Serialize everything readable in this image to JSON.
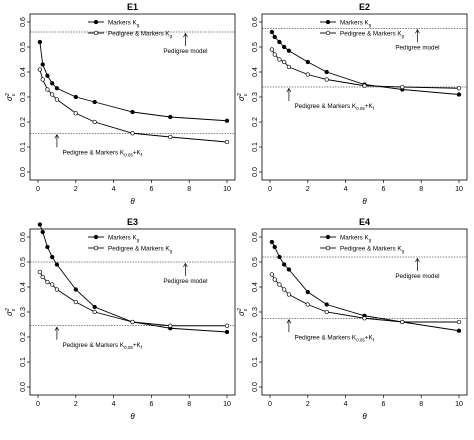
{
  "chart_data": [
    {
      "type": "line",
      "title": "E1",
      "xlabel": "θ",
      "ylabel": "σ²ε",
      "xlim": [
        0,
        10
      ],
      "ylim": [
        0.0,
        0.6
      ],
      "xticks": [
        "0",
        "2",
        "4",
        "6",
        "8",
        "10"
      ],
      "yticks": [
        "0.0",
        "0.1",
        "0.2",
        "0.3",
        "0.4",
        "0.5",
        "0.6"
      ],
      "series": [
        {
          "name": "Markers Kg",
          "marker": "filled",
          "x": [
            0.1,
            0.25,
            0.5,
            0.75,
            1,
            2,
            3,
            5,
            7,
            10
          ],
          "values": [
            0.52,
            0.43,
            0.385,
            0.355,
            0.335,
            0.3,
            0.28,
            0.24,
            0.22,
            0.205
          ]
        },
        {
          "name": "Pedigree & Markers Kg",
          "marker": "open",
          "x": [
            0.1,
            0.25,
            0.5,
            0.75,
            1,
            2,
            3,
            5,
            7,
            10
          ],
          "values": [
            0.41,
            0.37,
            0.33,
            0.31,
            0.29,
            0.235,
            0.2,
            0.155,
            0.14,
            0.12
          ]
        }
      ],
      "legend": {
        "position": "top-right",
        "entries": [
          "Markers Kg",
          "Pedigree & Markers Kg"
        ]
      },
      "reference_lines": [
        {
          "value": 0.56,
          "label": "Pedigree model",
          "label_position": "upper-right"
        },
        {
          "value": 0.155,
          "label": "Pedigree & Markers K0.05+Kf",
          "label_position": "lower-middle"
        }
      ]
    },
    {
      "type": "line",
      "title": "E2",
      "xlabel": "θ",
      "ylabel": "σ²ε",
      "xlim": [
        0,
        10
      ],
      "ylim": [
        0.0,
        0.6
      ],
      "xticks": [
        "0",
        "2",
        "4",
        "6",
        "8",
        "10"
      ],
      "yticks": [
        "0.0",
        "0.1",
        "0.2",
        "0.3",
        "0.4",
        "0.5",
        "0.6"
      ],
      "series": [
        {
          "name": "Markers Kg",
          "marker": "filled",
          "x": [
            0.1,
            0.25,
            0.5,
            0.75,
            1,
            2,
            3,
            5,
            7,
            10
          ],
          "values": [
            0.56,
            0.54,
            0.52,
            0.5,
            0.485,
            0.44,
            0.4,
            0.35,
            0.33,
            0.31
          ]
        },
        {
          "name": "Pedigree & Markers Kg",
          "marker": "open",
          "x": [
            0.1,
            0.25,
            0.5,
            0.75,
            1,
            2,
            3,
            5,
            7,
            10
          ],
          "values": [
            0.49,
            0.47,
            0.45,
            0.44,
            0.42,
            0.39,
            0.37,
            0.345,
            0.34,
            0.335
          ]
        }
      ],
      "legend": {
        "position": "top-right",
        "entries": [
          "Markers Kg",
          "Pedigree & Markers Kg"
        ]
      },
      "reference_lines": [
        {
          "value": 0.575,
          "label": "Pedigree model",
          "label_position": "upper-right"
        },
        {
          "value": 0.34,
          "label": "Pedigree & Markers K0.05+Kf",
          "label_position": "lower-middle"
        }
      ]
    },
    {
      "type": "line",
      "title": "E3",
      "xlabel": "θ",
      "ylabel": "σ²ε",
      "xlim": [
        0,
        10
      ],
      "ylim": [
        0.0,
        0.6
      ],
      "xticks": [
        "0",
        "2",
        "4",
        "6",
        "8",
        "10"
      ],
      "yticks": [
        "0.0",
        "0.1",
        "0.2",
        "0.3",
        "0.4",
        "0.5",
        "0.6"
      ],
      "series": [
        {
          "name": "Markers Kg",
          "marker": "filled",
          "x": [
            0.1,
            0.25,
            0.5,
            0.75,
            1,
            2,
            3,
            5,
            7,
            10
          ],
          "values": [
            0.65,
            0.62,
            0.56,
            0.52,
            0.49,
            0.39,
            0.32,
            0.26,
            0.235,
            0.22
          ]
        },
        {
          "name": "Pedigree & Markers Kg",
          "marker": "open",
          "x": [
            0.1,
            0.25,
            0.5,
            0.75,
            1,
            2,
            3,
            5,
            7,
            10
          ],
          "values": [
            0.46,
            0.44,
            0.42,
            0.41,
            0.39,
            0.34,
            0.3,
            0.26,
            0.245,
            0.245
          ]
        }
      ],
      "legend": {
        "position": "top-right",
        "entries": [
          "Markers Kg",
          "Pedigree & Markers Kg"
        ]
      },
      "reference_lines": [
        {
          "value": 0.5,
          "label": "Pedigree model",
          "label_position": "upper-right"
        },
        {
          "value": 0.245,
          "label": "Pedigree & Markers K0.05+Kf",
          "label_position": "lower-middle"
        }
      ]
    },
    {
      "type": "line",
      "title": "E4",
      "xlabel": "θ",
      "ylabel": "σ²ε",
      "xlim": [
        0,
        10
      ],
      "ylim": [
        0.0,
        0.6
      ],
      "xticks": [
        "0",
        "2",
        "4",
        "6",
        "8",
        "10"
      ],
      "yticks": [
        "0.0",
        "0.1",
        "0.2",
        "0.3",
        "0.4",
        "0.5",
        "0.6"
      ],
      "series": [
        {
          "name": "Markers Kg",
          "marker": "filled",
          "x": [
            0.1,
            0.25,
            0.5,
            0.75,
            1,
            2,
            3,
            5,
            7,
            10
          ],
          "values": [
            0.58,
            0.56,
            0.52,
            0.49,
            0.47,
            0.38,
            0.33,
            0.285,
            0.26,
            0.225
          ]
        },
        {
          "name": "Pedigree & Markers Kg",
          "marker": "open",
          "x": [
            0.1,
            0.25,
            0.5,
            0.75,
            1,
            2,
            3,
            5,
            7,
            10
          ],
          "values": [
            0.45,
            0.43,
            0.41,
            0.39,
            0.37,
            0.33,
            0.3,
            0.275,
            0.26,
            0.26
          ]
        }
      ],
      "legend": {
        "position": "top-right",
        "entries": [
          "Markers Kg",
          "Pedigree & Markers Kg"
        ]
      },
      "reference_lines": [
        {
          "value": 0.52,
          "label": "Pedigree model",
          "label_position": "upper-right"
        },
        {
          "value": 0.275,
          "label": "Pedigree & Markers K0.05+Kf",
          "label_position": "lower-middle"
        }
      ]
    }
  ]
}
